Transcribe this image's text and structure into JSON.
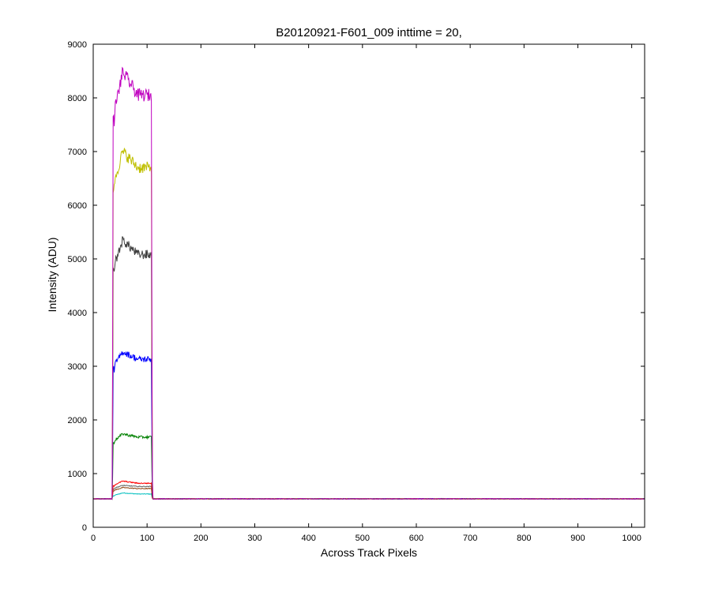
{
  "chart_data": {
    "type": "line",
    "title": "B20120921-F601_009 inttime = 20,",
    "xlabel": "Across Track Pixels",
    "ylabel": "Intensity (ADU)",
    "xlim": [
      0,
      1024
    ],
    "ylim": [
      0,
      9000
    ],
    "xticks": [
      0,
      100,
      200,
      300,
      400,
      500,
      600,
      700,
      800,
      900,
      1000
    ],
    "yticks": [
      0,
      1000,
      2000,
      3000,
      4000,
      5000,
      6000,
      7000,
      8000,
      9000
    ],
    "grid": false,
    "legend": "none",
    "baseline": 530,
    "plateau_start_x": 37,
    "plateau_end_x": 108,
    "series": [
      {
        "color": "#bf00bf",
        "plateau": 8050,
        "peak": 8480,
        "noise": 120
      },
      {
        "color": "#bfbf00",
        "plateau": 6700,
        "peak": 7000,
        "noise": 110
      },
      {
        "color": "#404040",
        "plateau": 5080,
        "peak": 5350,
        "noise": 90
      },
      {
        "color": "#0000ff",
        "plateau": 3130,
        "peak": 3270,
        "noise": 60
      },
      {
        "color": "#008000",
        "plateau": 1680,
        "peak": 1740,
        "noise": 25
      },
      {
        "color": "#ff0000",
        "plateau": 820,
        "peak": 860,
        "noise": 10
      },
      {
        "color": "#606060",
        "plateau": 760,
        "peak": 780,
        "noise": 8
      },
      {
        "color": "#8b4513",
        "plateau": 720,
        "peak": 740,
        "noise": 8
      },
      {
        "color": "#00bfbf",
        "plateau": 620,
        "peak": 640,
        "noise": 6
      }
    ]
  }
}
